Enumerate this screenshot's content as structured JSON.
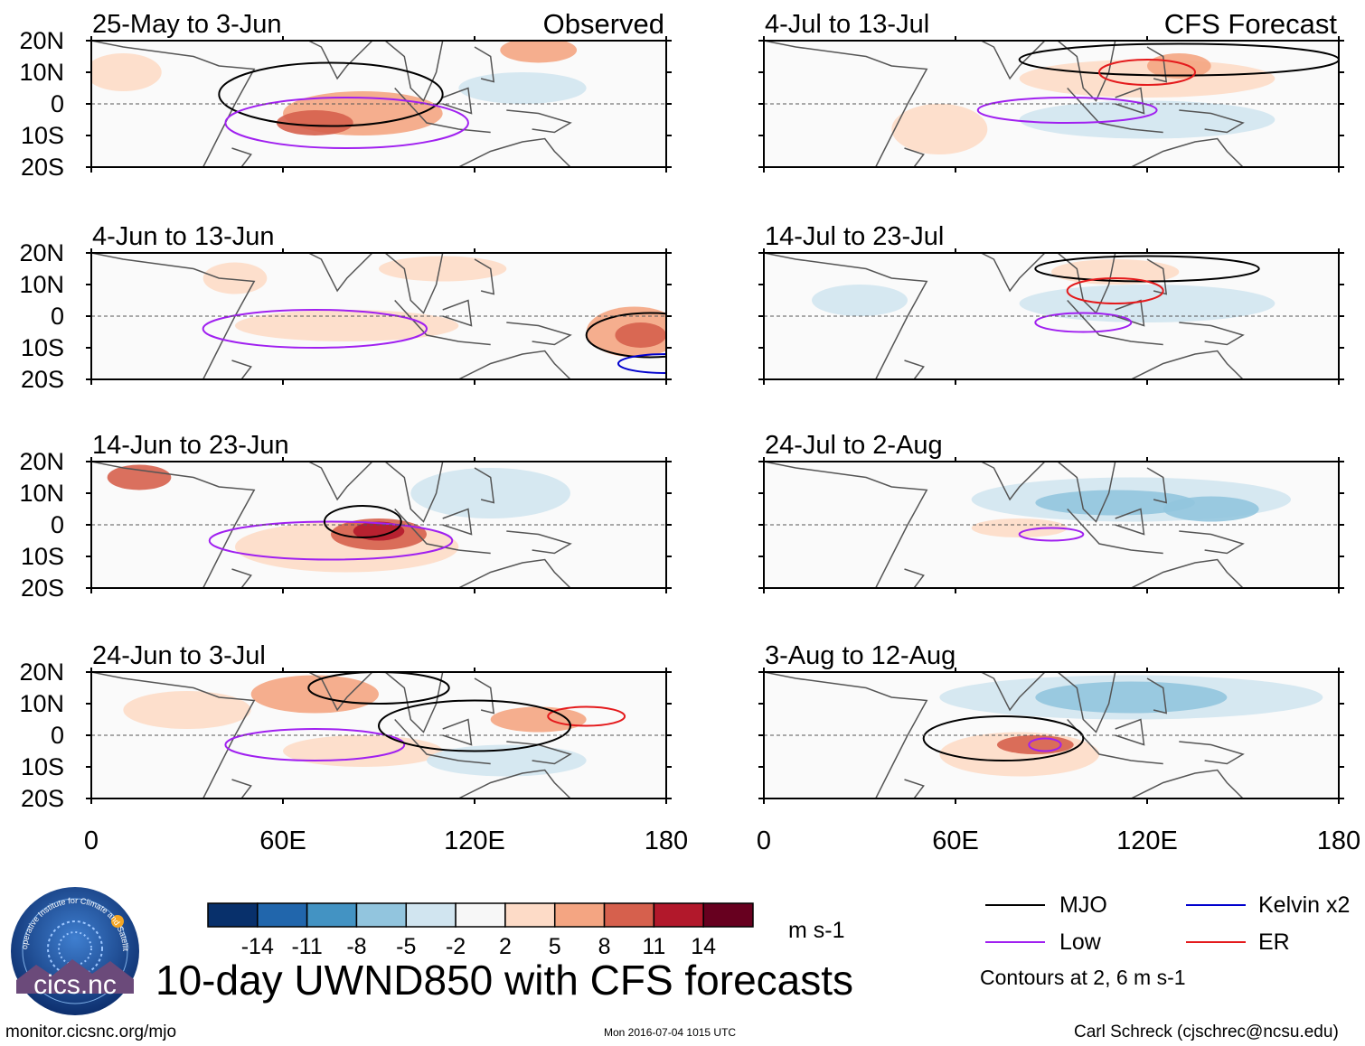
{
  "chart_data": {
    "type": "heatmap",
    "title": "10-day UWND850 with CFS forecasts",
    "variable": "850-hPa zonal wind anomaly",
    "units": "m s-1",
    "x_axis": {
      "range": [
        0,
        180
      ],
      "tick_values": [
        0,
        60,
        120,
        180
      ],
      "tick_labels": [
        "0",
        "60E",
        "120E",
        "180"
      ]
    },
    "y_axis": {
      "range": [
        -20,
        20
      ],
      "tick_values": [
        20,
        10,
        0,
        -10,
        -20
      ],
      "tick_labels": [
        "20N",
        "10N",
        "0",
        "10S",
        "20S"
      ]
    },
    "colorbar": {
      "levels": [
        -14,
        -11,
        -8,
        -5,
        -2,
        2,
        5,
        8,
        11,
        14
      ],
      "level_labels": [
        "-14",
        "-11",
        "-8",
        "-5",
        "-2",
        "2",
        "5",
        "8",
        "11",
        "14"
      ],
      "colors": [
        "#08306b",
        "#2166ac",
        "#4393c3",
        "#92c5de",
        "#d1e5f0",
        "#f7f7f7",
        "#fddbc7",
        "#f4a582",
        "#d6604d",
        "#b2182b",
        "#67001f"
      ]
    },
    "contour_legend": [
      {
        "name": "MJO",
        "color": "#000000"
      },
      {
        "name": "Low",
        "color": "#a020f0"
      },
      {
        "name": "Kelvin x2",
        "color": "#0000cd"
      },
      {
        "name": "ER",
        "color": "#e41a1c"
      }
    ],
    "contour_note": "Contours at 2, 6 m s-1",
    "column_titles": {
      "observed": "Observed",
      "forecast": "CFS Forecast"
    },
    "panels": [
      {
        "column": "Observed",
        "period": "25-May to 3-Jun"
      },
      {
        "column": "Observed",
        "period": "4-Jun to 13-Jun"
      },
      {
        "column": "Observed",
        "period": "14-Jun to 23-Jun"
      },
      {
        "column": "Observed",
        "period": "24-Jun to 3-Jul"
      },
      {
        "column": "CFS Forecast",
        "period": "4-Jul to 13-Jul"
      },
      {
        "column": "CFS Forecast",
        "period": "14-Jul to 23-Jul"
      },
      {
        "column": "CFS Forecast",
        "period": "24-Jul to 2-Aug"
      },
      {
        "column": "CFS Forecast",
        "period": "3-Aug to 12-Aug"
      }
    ]
  },
  "footer": {
    "left": "monitor.cicsnc.org/mjo",
    "middle": "Mon 2016-07-04 1015 UTC",
    "right": "Carl Schreck (cjschrec@ncsu.edu)"
  },
  "logo": {
    "text": "cics.nc",
    "ring_text": "Cooperative Institute for Climate and Satellites"
  }
}
